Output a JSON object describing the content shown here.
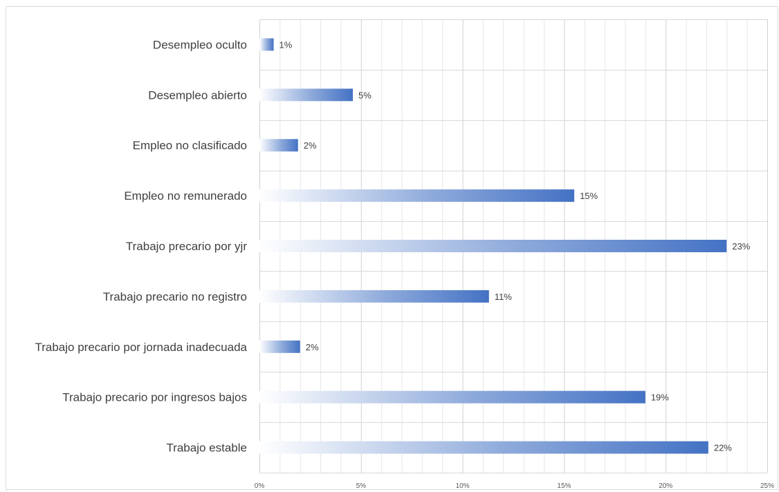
{
  "chart_data": {
    "type": "bar",
    "orientation": "horizontal",
    "title": "",
    "xlabel": "",
    "ylabel": "",
    "categories": [
      "Desempleo oculto",
      "Desempleo abierto",
      "Empleo no clasificado",
      "Empleo no remunerado",
      "Trabajo precario por yjr",
      "Trabajo precario no registro",
      "Trabajo precario por jornada inadecuada",
      "Trabajo precario por ingresos bajos",
      "Trabajo estable"
    ],
    "values": [
      0.7,
      4.6,
      1.9,
      15.5,
      23.0,
      11.3,
      2.0,
      19.0,
      22.1
    ],
    "value_labels": [
      "1%",
      "5%",
      "2%",
      "15%",
      "23%",
      "11%",
      "2%",
      "19%",
      "22%"
    ],
    "xlim": [
      0,
      25
    ],
    "x_ticks": [
      0,
      5,
      10,
      15,
      20,
      25
    ],
    "x_tick_labels": [
      "0%",
      "5%",
      "10%",
      "15%",
      "20%",
      "25%"
    ],
    "grid": true,
    "legend": "none",
    "bar_color": "#4472c4",
    "bar_gradient_start": "#ffffff"
  }
}
